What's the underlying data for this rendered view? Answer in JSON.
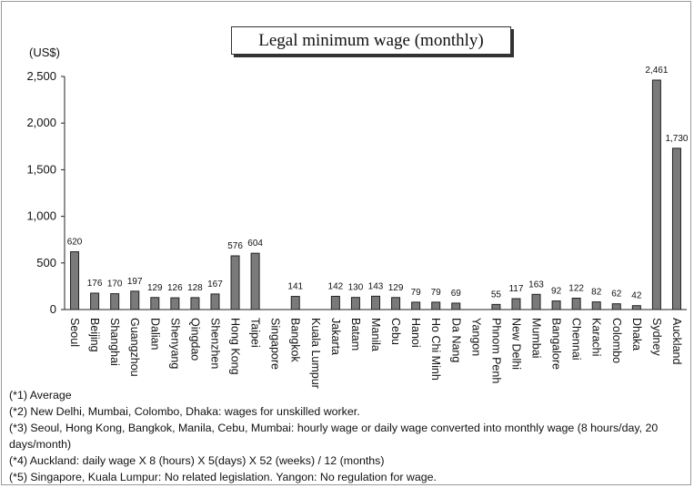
{
  "chart_data": {
    "type": "bar",
    "title": "Legal minimum wage (monthly)",
    "ylabel": "(US$)",
    "ylim": [
      0,
      2500
    ],
    "yticks": [
      0,
      500,
      1000,
      1500,
      2000,
      2500
    ],
    "ytick_labels": [
      "0",
      "500",
      "1,000",
      "1,500",
      "2,000",
      "2,500"
    ],
    "categories": [
      "Seoul",
      "Beijing",
      "Shanghai",
      "Guangzhou",
      "Dalian",
      "Shenyang",
      "Qingdao",
      "Shenzhen",
      "Hong Kong",
      "Taipei",
      "Singapore",
      "Bangkok",
      "Kuala Lumpur",
      "Jakarta",
      "Batam",
      "Manila",
      "Cebu",
      "Hanoi",
      "Ho Chi Minh",
      "Da Nang",
      "Yangon",
      "Phnom Penh",
      "New Delhi",
      "Mumbai",
      "Bangalore",
      "Chennai",
      "Karachi",
      "Colombo",
      "Dhaka",
      "Sydney",
      "Auckland"
    ],
    "values": [
      620,
      176,
      170,
      197,
      129,
      126,
      128,
      167,
      576,
      604,
      null,
      141,
      null,
      142,
      130,
      143,
      129,
      79,
      79,
      69,
      null,
      55,
      117,
      163,
      92,
      122,
      82,
      62,
      42,
      2461,
      1730
    ],
    "value_labels": [
      "620",
      "176",
      "170",
      "197",
      "129",
      "126",
      "128",
      "167",
      "576",
      "604",
      "",
      "141",
      "",
      "142",
      "130",
      "143",
      "129",
      "79",
      "79",
      "69",
      "",
      "55",
      "117",
      "163",
      "92",
      "122",
      "82",
      "62",
      "42",
      "2,461",
      "1,730"
    ],
    "grid": false,
    "legend": "none",
    "bar_color": "#7a7a7a"
  },
  "notes": [
    "(*1) Average",
    "(*2) New Delhi, Mumbai, Colombo, Dhaka: wages for unskilled worker.",
    "(*3) Seoul, Hong Kong, Bangkok, Manila, Cebu, Mumbai: hourly wage or daily wage converted into monthly wage (8 hours/day, 20 days/month)",
    "(*4) Auckland: daily wage X 8 (hours) X 5(days) X 52 (weeks) / 12 (months)",
    "(*5) Singapore, Kuala Lumpur: No related legislation. Yangon: No regulation for wage."
  ]
}
